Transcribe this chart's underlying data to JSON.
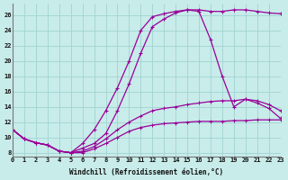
{
  "xlabel": "Windchill (Refroidissement éolien,°C)",
  "bg_color": "#c8ecea",
  "grid_color": "#a0d4d2",
  "line_color": "#990099",
  "xlim": [
    0,
    23
  ],
  "ylim": [
    7.5,
    27.5
  ],
  "xticks": [
    0,
    1,
    2,
    3,
    4,
    5,
    6,
    7,
    8,
    9,
    10,
    11,
    12,
    13,
    14,
    15,
    16,
    17,
    18,
    19,
    20,
    21,
    22,
    23
  ],
  "yticks": [
    8,
    10,
    12,
    14,
    16,
    18,
    20,
    22,
    24,
    26
  ],
  "curve_arch_x": [
    0,
    1,
    2,
    3,
    4,
    5,
    6,
    7,
    8,
    9,
    10,
    11,
    12,
    13,
    14,
    15,
    16,
    17,
    18,
    19,
    20,
    21,
    22,
    23
  ],
  "curve_arch_y": [
    11.0,
    9.8,
    9.3,
    9.0,
    8.2,
    8.0,
    8.6,
    9.2,
    10.5,
    13.5,
    17.0,
    21.0,
    24.5,
    25.5,
    26.3,
    26.7,
    26.5,
    22.8,
    18.0,
    14.0,
    15.0,
    14.5,
    13.8,
    12.5
  ],
  "curve_top_x": [
    0,
    1,
    2,
    3,
    4,
    5,
    6,
    7,
    8,
    9,
    10,
    11,
    12,
    13,
    14,
    15,
    16,
    17,
    18,
    19,
    20,
    21,
    22,
    23
  ],
  "curve_top_y": [
    11.0,
    9.8,
    9.3,
    9.0,
    8.2,
    8.0,
    9.2,
    11.0,
    13.5,
    16.5,
    20.0,
    24.0,
    25.8,
    26.2,
    26.5,
    26.7,
    26.7,
    26.5,
    26.5,
    26.7,
    26.7,
    26.5,
    26.3,
    26.2
  ],
  "curve_mid_x": [
    0,
    1,
    2,
    3,
    4,
    5,
    6,
    7,
    8,
    9,
    10,
    11,
    12,
    13,
    14,
    15,
    16,
    17,
    18,
    19,
    20,
    21,
    22,
    23
  ],
  "curve_mid_y": [
    11.0,
    9.8,
    9.3,
    9.0,
    8.2,
    8.0,
    8.2,
    8.8,
    9.8,
    11.0,
    12.0,
    12.8,
    13.5,
    13.8,
    14.0,
    14.3,
    14.5,
    14.7,
    14.8,
    14.8,
    15.0,
    14.8,
    14.3,
    13.5
  ],
  "curve_flat_x": [
    0,
    1,
    2,
    3,
    4,
    5,
    6,
    7,
    8,
    9,
    10,
    11,
    12,
    13,
    14,
    15,
    16,
    17,
    18,
    19,
    20,
    21,
    22,
    23
  ],
  "curve_flat_y": [
    11.0,
    9.8,
    9.3,
    9.0,
    8.2,
    8.0,
    8.0,
    8.5,
    9.2,
    10.0,
    10.8,
    11.3,
    11.6,
    11.8,
    11.9,
    12.0,
    12.1,
    12.1,
    12.1,
    12.2,
    12.2,
    12.3,
    12.3,
    12.3
  ]
}
